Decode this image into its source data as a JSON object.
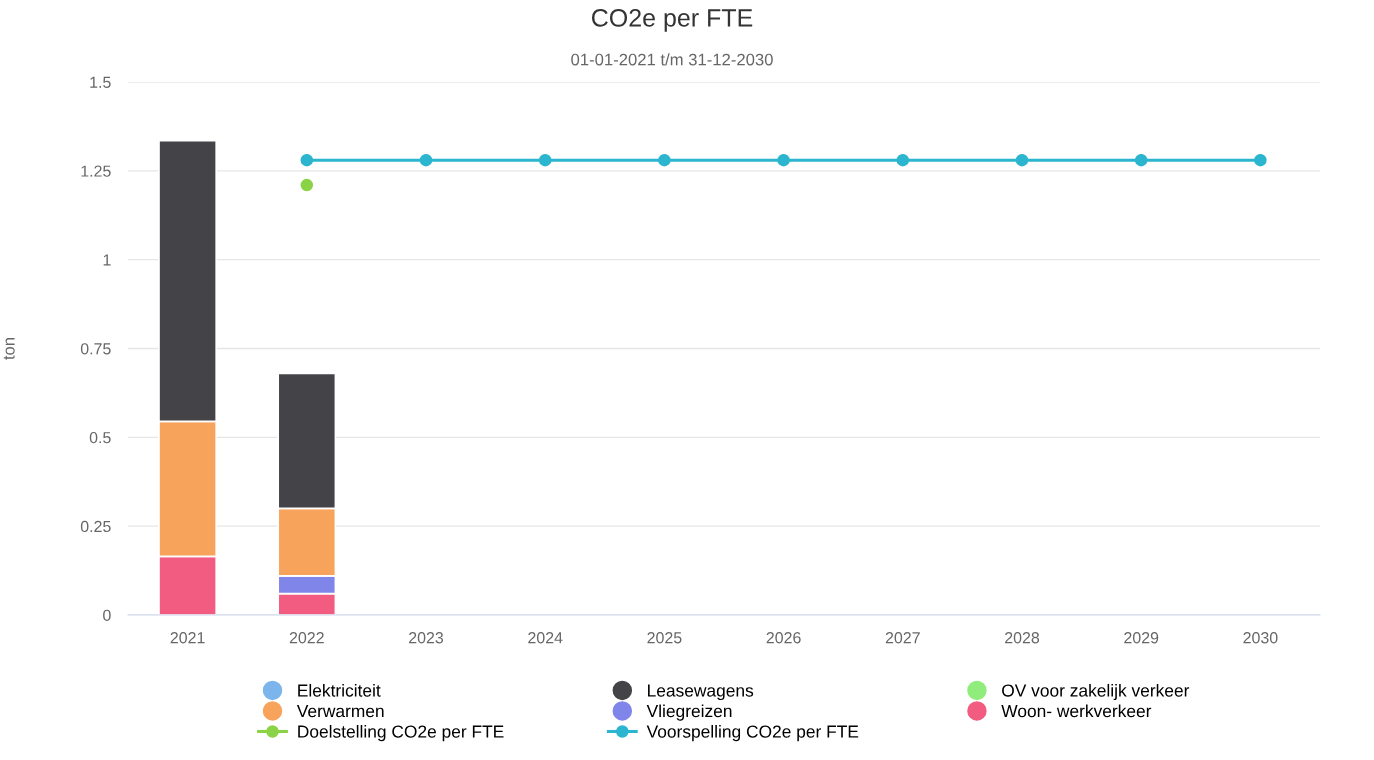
{
  "chart_data": {
    "type": "bar",
    "title": "CO2e per FTE",
    "subtitle": "01-01-2021 t/m 31-12-2030",
    "ylabel": "ton",
    "categories": [
      "2021",
      "2022",
      "2023",
      "2024",
      "2025",
      "2026",
      "2027",
      "2028",
      "2029",
      "2030"
    ],
    "stacked": true,
    "ylim": [
      0,
      1.5
    ],
    "yticks": [
      0,
      0.25,
      0.5,
      0.75,
      1,
      1.25,
      1.5
    ],
    "grid": "y",
    "legend": "bottom",
    "series": [
      {
        "name": "Woon- werkverkeer",
        "color": "#f15c80",
        "values": [
          0.165,
          0.06,
          null,
          null,
          null,
          null,
          null,
          null,
          null,
          null
        ]
      },
      {
        "name": "Vliegreizen",
        "color": "#8085e9",
        "values": [
          null,
          0.05,
          null,
          null,
          null,
          null,
          null,
          null,
          null,
          null
        ]
      },
      {
        "name": "Verwarmen",
        "color": "#f7a35c",
        "values": [
          0.38,
          0.19,
          null,
          null,
          null,
          null,
          null,
          null,
          null,
          null
        ]
      },
      {
        "name": "OV voor zakelijk verkeer",
        "color": "#90ed7d",
        "values": [
          null,
          null,
          null,
          null,
          null,
          null,
          null,
          null,
          null,
          null
        ]
      },
      {
        "name": "Leasewagens",
        "color": "#434348",
        "values": [
          0.79,
          0.38,
          null,
          null,
          null,
          null,
          null,
          null,
          null,
          null
        ]
      },
      {
        "name": "Elektriciteit",
        "color": "#7cb5ec",
        "values": [
          null,
          null,
          null,
          null,
          null,
          null,
          null,
          null,
          null,
          null
        ]
      },
      {
        "name": "Doelstelling CO2e per FTE",
        "type": "line",
        "marker": "circle",
        "color": "#8bd346",
        "values": [
          null,
          1.21,
          null,
          null,
          null,
          null,
          null,
          null,
          null,
          null
        ]
      },
      {
        "name": "Voorspelling CO2e per FTE",
        "type": "line",
        "marker": "circle",
        "color": "#2cb5cf",
        "values": [
          null,
          1.28,
          1.28,
          1.28,
          1.28,
          1.28,
          1.28,
          1.28,
          1.28,
          1.28
        ]
      }
    ]
  }
}
